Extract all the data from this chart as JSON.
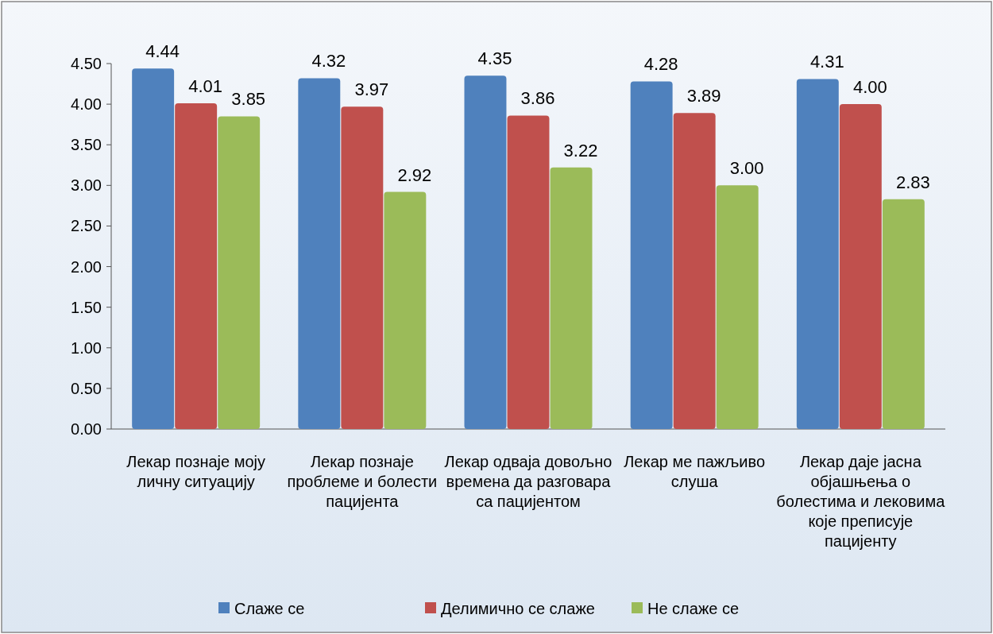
{
  "chart_data": {
    "type": "bar",
    "categories": [
      "Лекар познаје моју личну ситуацију",
      "Лекар познаје проблеме и болести пацијента",
      "Лекар одваја довољно времена да разговара са пацијентом",
      "Лекар ме пажљиво слуша",
      "Лекар даје јасна објашњења о болестима и лековима које преписује пацијенту"
    ],
    "series": [
      {
        "name": "Слаже се",
        "color": "#4f81bd",
        "values": [
          4.44,
          4.32,
          4.35,
          4.28,
          4.31
        ],
        "value_labels": [
          "4.44",
          "4.32",
          "4.35",
          "4.28",
          "4.31"
        ]
      },
      {
        "name": "Делимично се слаже",
        "color": "#c0504d",
        "values": [
          4.01,
          3.97,
          3.86,
          3.89,
          4.0
        ],
        "value_labels": [
          "4.01",
          "3.97",
          "3.86",
          "3.89",
          "4.00"
        ]
      },
      {
        "name": "Не слаже се",
        "color": "#9bbb59",
        "values": [
          3.85,
          2.92,
          3.22,
          3.0,
          2.83
        ],
        "value_labels": [
          "3.85",
          "2.92",
          "3.22",
          "3.00",
          "2.83"
        ]
      }
    ],
    "ylim": [
      0,
      4.5
    ],
    "yticks": [
      {
        "value": 0,
        "label": "0.00"
      },
      {
        "value": 0.5,
        "label": "0.50"
      },
      {
        "value": 1,
        "label": "1.00"
      },
      {
        "value": 1.5,
        "label": "1.50"
      },
      {
        "value": 2,
        "label": "2.00"
      },
      {
        "value": 2.5,
        "label": "2.50"
      },
      {
        "value": 3,
        "label": "3.00"
      },
      {
        "value": 3.5,
        "label": "3.50"
      },
      {
        "value": 4,
        "label": "4.00"
      },
      {
        "value": 4.5,
        "label": "4.50"
      }
    ],
    "grid": false,
    "legend": "bottom"
  }
}
